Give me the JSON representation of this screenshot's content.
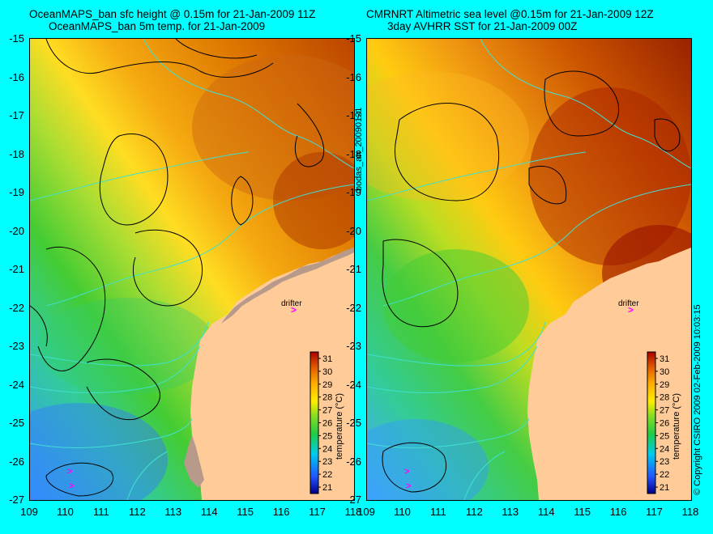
{
  "titles": {
    "left_line1": "OceanMAPS_ban sfc height @ 0.15m for 21-Jan-2009 11Z",
    "left_line2": "OceanMAPS_ban 5m temp. for 21-Jan-2009",
    "right_line1": "CMRNRT Altimetric sea level  @0.15m  for 21-Jan-2009 12Z",
    "right_line2": "3day AVHRR SST for 21-Jan-2009 00Z"
  },
  "axes": {
    "lat_ticks": [
      "-15",
      "-16",
      "-17",
      "-18",
      "-19",
      "-20",
      "-21",
      "-22",
      "-23",
      "-24",
      "-25",
      "-26",
      "-27"
    ],
    "lon_ticks": [
      "109",
      "110",
      "111",
      "112",
      "113",
      "114",
      "115",
      "116",
      "117",
      "118"
    ],
    "lat_range": [
      -27,
      -15
    ],
    "lon_range": [
      109,
      118
    ]
  },
  "colorbar": {
    "label": "temperature (°C)",
    "ticks": [
      "31",
      "30",
      "29",
      "28",
      "27",
      "26",
      "25",
      "24",
      "23",
      "22",
      "21"
    ],
    "range": [
      20.5,
      31.5
    ]
  },
  "annotations": {
    "drifter_label": "drifter",
    "drifter_marker": ">"
  },
  "side_text": {
    "product_id": "bodas_an_20090121",
    "copyright": "© Copyright CSIRO 2009   02-Feb-2009 10:03:15"
  },
  "colors": {
    "background": "#00ffff",
    "land": "#ffcc99",
    "bathymetry_contour": "#40e0d0",
    "sea_level_contour": "#000000",
    "drifter": "#ff00ff",
    "shallow_mask": "#b89a8a"
  }
}
